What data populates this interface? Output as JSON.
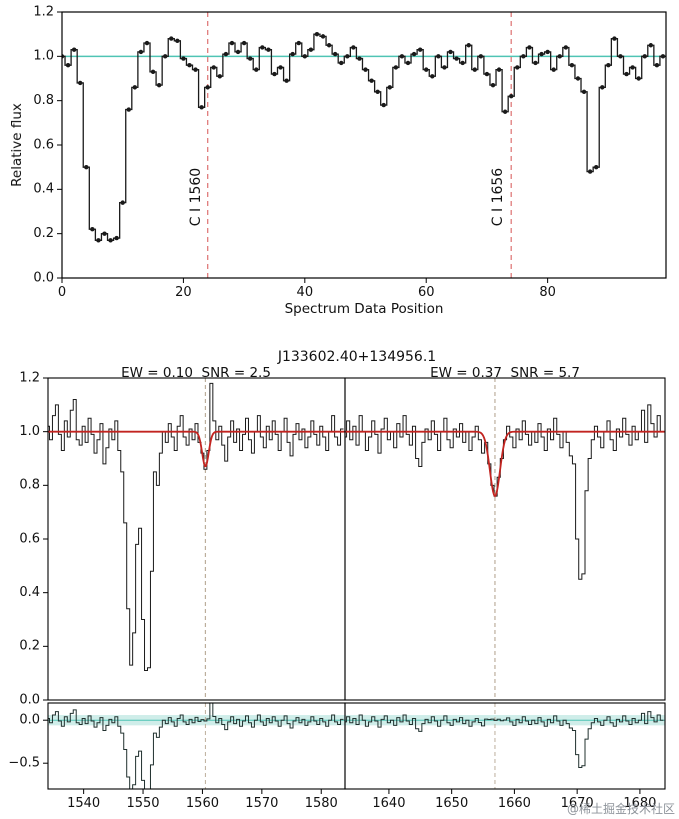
{
  "watermark": {
    "text": "@稀土掘金技术社区"
  },
  "colors": {
    "spectrum": "#1a1a1a",
    "continuum_teal": "#4fc4b4",
    "fit_red": "#c22420",
    "vline_top": "#e07b7b",
    "vline_bottom": "#bcae9c",
    "residual_band": "rgba(95,196,182,0.30)",
    "frame": "#000000"
  },
  "chart_data": [
    {
      "type": "line",
      "title": "",
      "xlabel": "Spectrum Data Position",
      "ylabel": "Relative flux",
      "drawstyle": "steps-mid",
      "marker": "point",
      "grid": false,
      "xlim": [
        0,
        99.5
      ],
      "ylim": [
        0,
        1.2
      ],
      "xticks": [
        0,
        20,
        40,
        60,
        80
      ],
      "yticks": [
        0,
        0.2,
        0.4,
        0.6,
        0.8,
        1.0,
        1.2
      ],
      "reference_line_y": 1.0,
      "vlines": [
        {
          "x": 24,
          "label": "C I 1560"
        },
        {
          "x": 74,
          "label": "C I 1656"
        }
      ],
      "values": [
        1.0,
        0.96,
        1.03,
        0.88,
        0.5,
        0.22,
        0.17,
        0.2,
        0.17,
        0.18,
        0.34,
        0.76,
        0.86,
        1.02,
        1.06,
        0.93,
        0.87,
        1.0,
        1.08,
        1.07,
        0.99,
        0.96,
        0.94,
        0.77,
        0.86,
        0.95,
        0.91,
        1.01,
        1.06,
        1.02,
        1.06,
        0.99,
        0.94,
        1.04,
        1.03,
        0.92,
        0.95,
        0.89,
        1.01,
        1.06,
        1.0,
        1.03,
        1.1,
        1.09,
        1.05,
        1.01,
        0.97,
        1.0,
        1.04,
        0.99,
        0.94,
        0.89,
        0.84,
        0.78,
        0.86,
        0.95,
        1.0,
        0.97,
        1.01,
        1.03,
        0.94,
        0.91,
        1.0,
        0.95,
        1.02,
        0.99,
        0.97,
        1.05,
        0.94,
        1.0,
        0.92,
        0.87,
        0.94,
        0.75,
        0.82,
        0.95,
        1.0,
        1.04,
        0.97,
        1.01,
        1.02,
        0.94,
        1.0,
        1.04,
        0.96,
        0.9,
        0.84,
        0.48,
        0.5,
        0.86,
        0.96,
        1.08,
        1.0,
        0.92,
        0.95,
        0.9,
        1.0,
        1.05,
        0.96,
        1.0
      ]
    },
    {
      "type": "line",
      "title": "J133602.40+134956.1",
      "drawstyle": "steps-mid",
      "grid": false,
      "ylim": [
        0,
        1.2
      ],
      "yticks": [
        0,
        0.2,
        0.4,
        0.6,
        0.8,
        1.0,
        1.2
      ],
      "residual_ylim": [
        -0.8,
        0.2
      ],
      "residual_yticks": [
        0,
        -0.5
      ],
      "panels": [
        {
          "header": "EW = 0.10  SNR = 2.5",
          "xlim": [
            1534,
            1584
          ],
          "xticks": [
            1540,
            1550,
            1560,
            1570,
            1580
          ],
          "wl_start": 1534,
          "wl_step": 0.5,
          "line_center": 1560.5,
          "fit": {
            "center": 1560.5,
            "depth": 0.13,
            "sigma": 0.55
          },
          "flux": [
            1.02,
            0.97,
            1.06,
            1.1,
            0.99,
            0.93,
            1.04,
            0.98,
            1.08,
            1.12,
            0.97,
            0.95,
            1.02,
            0.96,
            1.05,
            0.99,
            0.92,
            0.97,
            1.03,
            0.88,
            0.94,
            1.01,
            0.97,
            1.04,
            0.93,
            0.85,
            0.66,
            0.34,
            0.13,
            0.25,
            0.58,
            0.64,
            0.3,
            0.11,
            0.12,
            0.48,
            0.85,
            0.8,
            0.92,
            1.0,
            0.96,
            1.03,
            0.98,
            0.93,
            1.02,
            1.06,
            0.98,
            0.95,
            1.01,
            0.97,
            1.03,
            0.96,
            0.92,
            0.86,
            0.93,
            1.18,
            1.04,
            0.97,
            1.02,
            0.95,
            0.89,
            0.98,
            1.04,
            0.96,
            1.01,
            0.93,
            0.99,
            1.05,
            0.97,
            0.92,
            1.0,
            1.06,
            0.98,
            0.94,
            1.02,
            0.97,
            1.04,
            0.99,
            0.93,
            1.0,
            1.05,
            0.96,
            0.91,
            0.99,
            1.03,
            0.97,
            1.01,
            0.94,
            0.98,
            1.04,
            0.99,
            0.95,
            1.02,
            0.98,
            0.93,
            1.0,
            1.06,
            0.98,
            0.95,
            1.01
          ]
        },
        {
          "header": "EW = 0.37  SNR = 5.7",
          "xlim": [
            1633,
            1684
          ],
          "xticks": [
            1640,
            1650,
            1660,
            1670,
            1680
          ],
          "wl_start": 1633,
          "wl_step": 0.5,
          "line_center": 1656.9,
          "fit": {
            "center": 1656.9,
            "depth": 0.24,
            "sigma": 0.8
          },
          "flux": [
            0.98,
            1.04,
            0.97,
            1.02,
            0.95,
            1.06,
            1.0,
            0.93,
            0.98,
            1.04,
            0.99,
            0.92,
            1.01,
            1.05,
            0.97,
            1.0,
            0.94,
            1.03,
            0.98,
            1.06,
            0.99,
            0.95,
            1.02,
            0.9,
            0.87,
            0.96,
            1.01,
            0.97,
            1.04,
            0.99,
            0.93,
            1.0,
            1.05,
            0.97,
            0.94,
            1.01,
            0.98,
            1.03,
            0.96,
            1.0,
            0.93,
            0.98,
            1.02,
            0.97,
            0.92,
            0.96,
            0.88,
            0.8,
            0.76,
            0.83,
            0.9,
            0.97,
            1.02,
            0.98,
            0.94,
            1.01,
            0.97,
            1.04,
            0.99,
            0.95,
            1.0,
            0.96,
            1.03,
            0.98,
            0.93,
            1.01,
            0.97,
            1.05,
            0.99,
            0.94,
            1.0,
            0.96,
            0.91,
            0.88,
            0.6,
            0.45,
            0.47,
            0.78,
            0.9,
            0.97,
            1.02,
            0.98,
            0.94,
            1.0,
            1.04,
            0.97,
            0.93,
            1.01,
            0.98,
            1.05,
            0.99,
            0.95,
            1.02,
            0.97,
            1.0,
            1.08,
            0.96,
            1.1,
            1.03,
            0.98,
            1.06,
            1.0
          ]
        }
      ]
    }
  ]
}
